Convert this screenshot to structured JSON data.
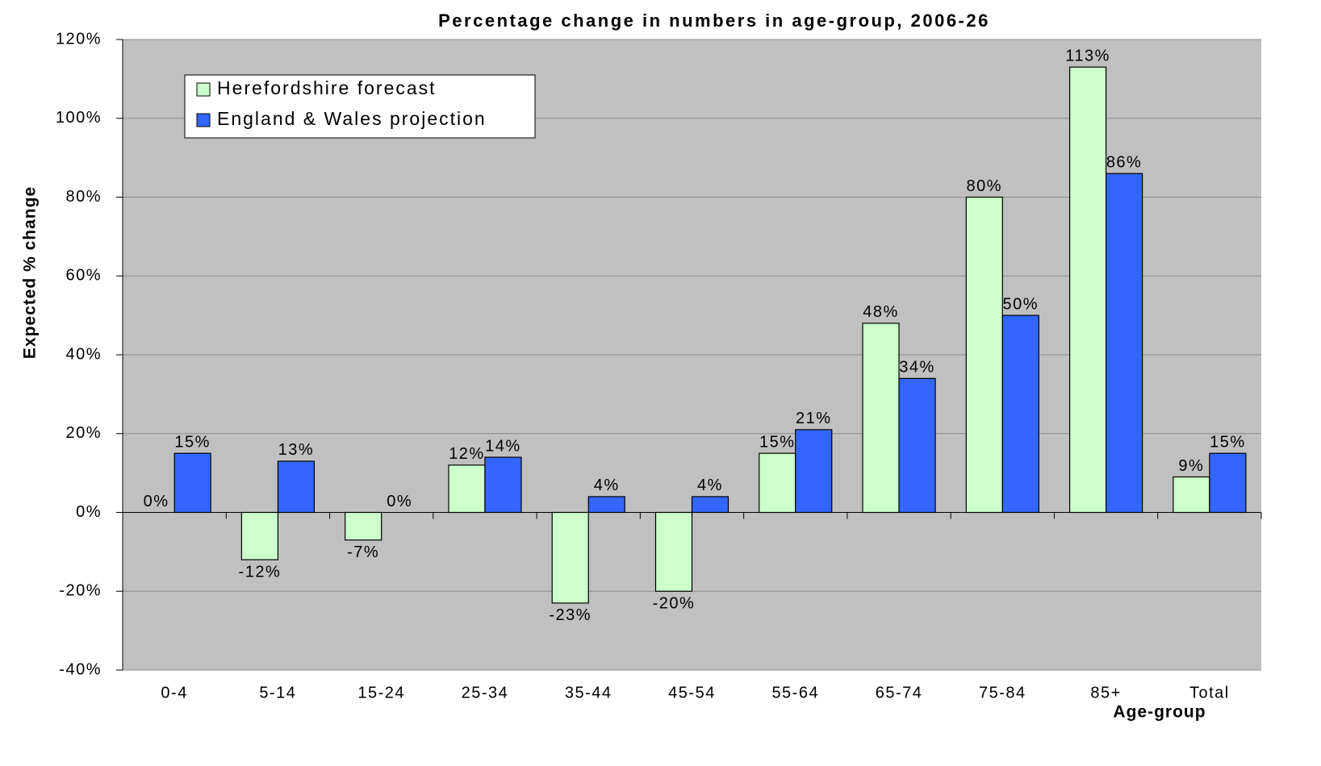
{
  "chart_data": {
    "type": "bar",
    "title": "Percentage change in numbers in age-group, 2006-26",
    "y_label": "Expected % change",
    "x_label": "Age-group",
    "categories": [
      "0-4",
      "5-14",
      "15-24",
      "25-34",
      "35-44",
      "45-54",
      "55-64",
      "65-74",
      "75-84",
      "85+",
      "Total"
    ],
    "series": [
      {
        "name": "Herefordshire forecast",
        "color": "#ccffcc",
        "values": [
          0,
          -12,
          -7,
          12,
          -23,
          -20,
          15,
          48,
          80,
          113,
          9
        ],
        "value_labels": [
          "0%",
          "-12%",
          "-7%",
          "12%",
          "-23%",
          "-20%",
          "15%",
          "48%",
          "80%",
          "113%",
          "9%"
        ]
      },
      {
        "name": "England & Wales projection",
        "color": "#3366ff",
        "values": [
          15,
          13,
          0,
          14,
          4,
          4,
          21,
          34,
          50,
          86,
          15
        ],
        "value_labels": [
          "15%",
          "13%",
          "0%",
          "14%",
          "4%",
          "4%",
          "21%",
          "34%",
          "50%",
          "86%",
          "15%"
        ]
      }
    ],
    "ylim": [
      -40,
      120
    ],
    "yticks": [
      {
        "value": -40,
        "label": "-40%"
      },
      {
        "value": -20,
        "label": "-20%"
      },
      {
        "value": 0,
        "label": "0%"
      },
      {
        "value": 20,
        "label": "20%"
      },
      {
        "value": 40,
        "label": "40%"
      },
      {
        "value": 60,
        "label": "60%"
      },
      {
        "value": 80,
        "label": "80%"
      },
      {
        "value": 100,
        "label": "100%"
      },
      {
        "value": 120,
        "label": "120%"
      }
    ],
    "grid": true,
    "legend": "upper left"
  }
}
